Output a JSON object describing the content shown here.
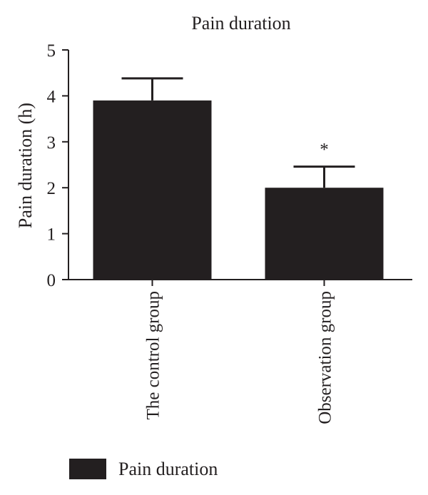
{
  "chart_data": {
    "type": "bar",
    "title": "Pain duration",
    "xlabel": "",
    "ylabel": "Pain duration (h)",
    "ylim": [
      0,
      5
    ],
    "yticks": [
      0,
      1,
      2,
      3,
      4,
      5
    ],
    "categories": [
      "The control group",
      "Observation group"
    ],
    "series": [
      {
        "name": "Pain duration",
        "values": [
          3.9,
          2.0
        ],
        "errors": [
          0.48,
          0.46
        ]
      }
    ],
    "annotations": [
      {
        "category": "Observation group",
        "text": "*"
      }
    ],
    "legend": {
      "position": "bottom-left",
      "entries": [
        "Pain duration"
      ]
    },
    "grid": false,
    "colors": {
      "bar": "#231f20",
      "axis": "#231f20",
      "text": "#231f20"
    }
  }
}
